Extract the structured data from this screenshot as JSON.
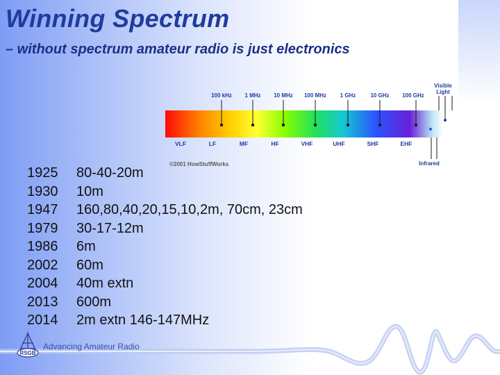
{
  "slide": {
    "title": "Winning Spectrum",
    "subtitle": "– without spectrum amateur radio is just electronics",
    "footer": "Advancing Amateur Radio",
    "logo_text": "RSGB"
  },
  "spectrum_figure": {
    "frequency_labels": [
      "100 kHz",
      "1 MHz",
      "10 MHz",
      "100 MHz",
      "1 GHz",
      "10 GHz",
      "100 GHz"
    ],
    "band_labels": [
      "VLF",
      "LF",
      "MF",
      "HF",
      "VHF",
      "UHF",
      "SHF",
      "EHF"
    ],
    "visible_label": [
      "Visible",
      "Light"
    ],
    "infrared_label": "Infrared",
    "credit": "©2001 HowStuffWorks",
    "colors": {
      "gradient": [
        "#ff0a0a",
        "#ff7f00",
        "#ffd400",
        "#ffff33",
        "#88ff00",
        "#22e05a",
        "#14c8d2",
        "#2a52ff",
        "#6a1fd8",
        "#b6e4f4",
        "#ffffff"
      ],
      "label": "#1f3c9c"
    }
  },
  "allocations": [
    {
      "year": "1925",
      "bands": " 80-40-20m"
    },
    {
      "year": "1930",
      "bands": "10m"
    },
    {
      "year": "1947",
      "bands": " 160,80,40,20,15,10,2m, 70cm, 23cm"
    },
    {
      "year": "1979",
      "bands": " 30-17-12m"
    },
    {
      "year": "1986",
      "bands": " 6m"
    },
    {
      "year": "2002",
      "bands": " 60m"
    },
    {
      "year": "2004",
      "bands": " 40m extn"
    },
    {
      "year": "2013",
      "bands": " 600m"
    },
    {
      "year": "2014",
      "bands": "2m extn 146-147MHz"
    }
  ]
}
